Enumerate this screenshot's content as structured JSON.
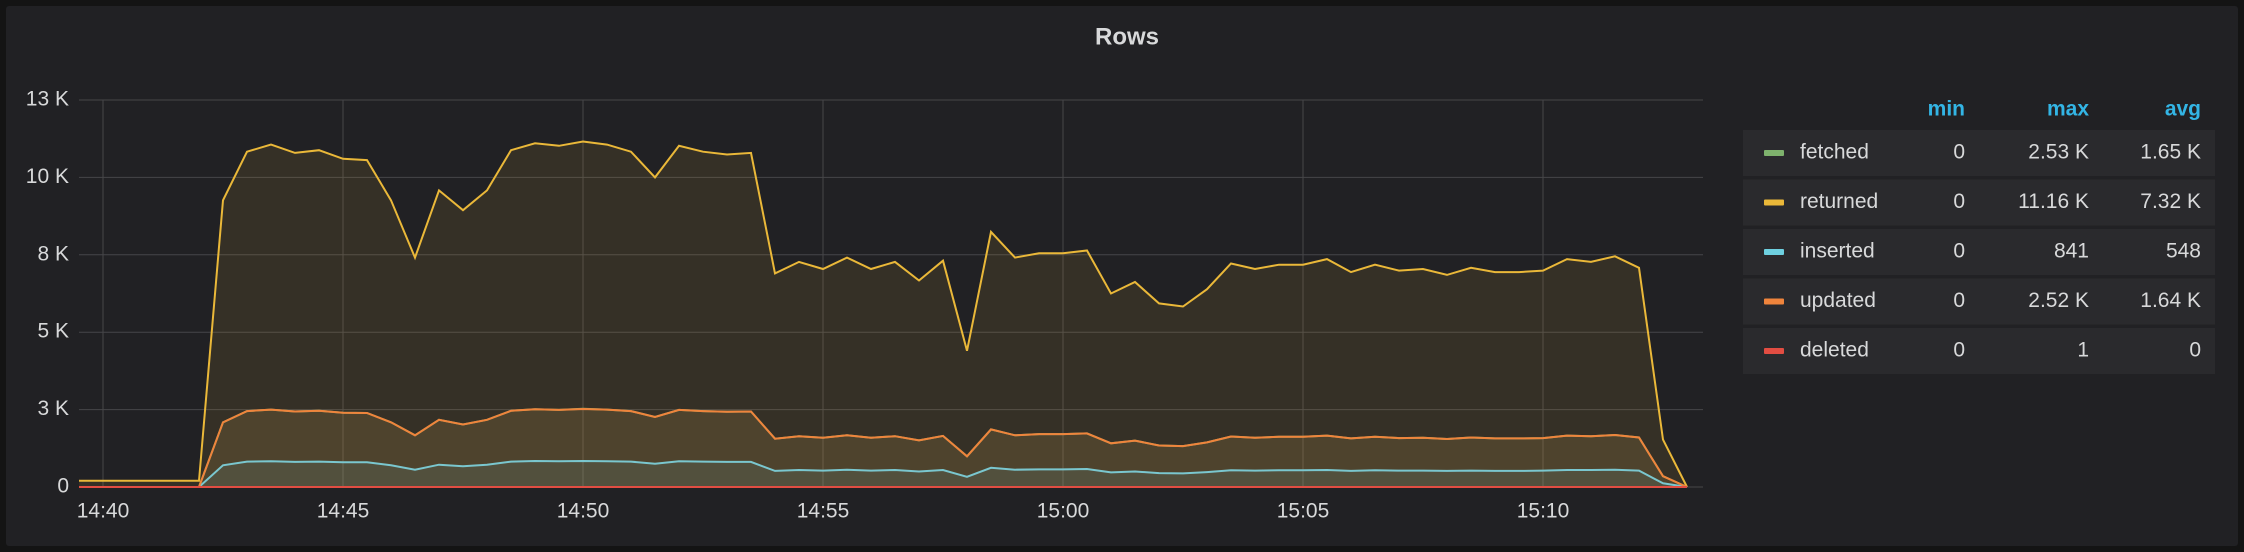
{
  "chart_data": {
    "type": "line",
    "title": "Rows",
    "x": [
      "14:39:30",
      "14:40:00",
      "14:40:30",
      "14:41:00",
      "14:41:30",
      "14:42:00",
      "14:42:30",
      "14:43:00",
      "14:43:30",
      "14:44:00",
      "14:44:30",
      "14:45:00",
      "14:45:30",
      "14:46:00",
      "14:46:30",
      "14:47:00",
      "14:47:30",
      "14:48:00",
      "14:48:30",
      "14:49:00",
      "14:49:30",
      "14:50:00",
      "14:50:30",
      "14:51:00",
      "14:51:30",
      "14:52:00",
      "14:52:30",
      "14:53:00",
      "14:53:30",
      "14:54:00",
      "14:54:30",
      "14:55:00",
      "14:55:30",
      "14:56:00",
      "14:56:30",
      "14:57:00",
      "14:57:30",
      "14:58:00",
      "14:58:30",
      "14:59:00",
      "14:59:30",
      "15:00:00",
      "15:00:30",
      "15:01:00",
      "15:01:30",
      "15:02:00",
      "15:02:30",
      "15:03:00",
      "15:03:30",
      "15:04:00",
      "15:04:30",
      "15:05:00",
      "15:05:30",
      "15:06:00",
      "15:06:30",
      "15:07:00",
      "15:07:30",
      "15:08:00",
      "15:08:30",
      "15:09:00",
      "15:09:30",
      "15:10:00",
      "15:10:30",
      "15:11:00",
      "15:11:30",
      "15:12:00",
      "15:12:30",
      "15:13:00"
    ],
    "xlim": [
      "14:39:30",
      "15:13:20"
    ],
    "xticks": [
      "14:40",
      "14:45",
      "14:50",
      "14:55",
      "15:00",
      "15:05",
      "15:10"
    ],
    "ylim": [
      0,
      12500
    ],
    "yticks": [
      0,
      {
        "value": 2500,
        "label": "3 K"
      },
      {
        "value": 5000,
        "label": "5 K"
      },
      {
        "value": 7500,
        "label": "8 K"
      },
      {
        "value": 10000,
        "label": "10 K"
      },
      {
        "value": 12500,
        "label": "13 K"
      }
    ],
    "grid": true,
    "legend": {
      "position": "right",
      "columns": [
        "min",
        "max",
        "avg"
      ]
    },
    "series": [
      {
        "name": "fetched",
        "color": "#7eb26d",
        "stats": [
          "0",
          "2.53 K",
          "1.65 K"
        ],
        "values": [
          0,
          0,
          0,
          0,
          0,
          0,
          2090,
          2450,
          2500,
          2440,
          2460,
          2400,
          2390,
          2090,
          1670,
          2170,
          2020,
          2170,
          2460,
          2510,
          2490,
          2530,
          2500,
          2450,
          2260,
          2490,
          2450,
          2430,
          2440,
          1560,
          1640,
          1590,
          1670,
          1590,
          1640,
          1510,
          1650,
          990,
          1860,
          1670,
          1710,
          1710,
          1730,
          1410,
          1500,
          1340,
          1320,
          1440,
          1630,
          1590,
          1620,
          1620,
          1660,
          1570,
          1620,
          1580,
          1590,
          1550,
          1600,
          1570,
          1570,
          1580,
          1660,
          1640,
          1680,
          1600,
          350,
          0
        ]
      },
      {
        "name": "returned",
        "color": "#eab839",
        "stats": [
          "0",
          "11.16 K",
          "7.32 K"
        ],
        "values": [
          200,
          200,
          200,
          200,
          200,
          200,
          9260,
          10830,
          11060,
          10790,
          10880,
          10600,
          10560,
          9260,
          7410,
          9580,
          8940,
          9580,
          10880,
          11100,
          11020,
          11160,
          11060,
          10830,
          10000,
          11020,
          10830,
          10740,
          10790,
          6900,
          7270,
          7040,
          7410,
          7040,
          7270,
          6670,
          7310,
          4400,
          8240,
          7410,
          7550,
          7550,
          7640,
          6250,
          6620,
          5930,
          5830,
          6390,
          7220,
          7040,
          7180,
          7180,
          7360,
          6940,
          7180,
          6990,
          7040,
          6850,
          7080,
          6940,
          6940,
          6990,
          7360,
          7270,
          7450,
          7080,
          1530,
          0
        ]
      },
      {
        "name": "inserted",
        "color": "#6ed0e0",
        "stats": [
          "0",
          "841",
          "548"
        ],
        "values": [
          0,
          0,
          0,
          0,
          0,
          0,
          700,
          820,
          830,
          810,
          820,
          800,
          800,
          700,
          560,
          720,
          670,
          720,
          820,
          840,
          830,
          841,
          830,
          820,
          750,
          830,
          820,
          810,
          810,
          520,
          550,
          530,
          560,
          530,
          550,
          500,
          550,
          330,
          620,
          560,
          570,
          570,
          580,
          470,
          500,
          450,
          440,
          480,
          540,
          530,
          540,
          540,
          550,
          520,
          540,
          530,
          530,
          520,
          530,
          520,
          520,
          530,
          550,
          550,
          560,
          530,
          120,
          0
        ]
      },
      {
        "name": "updated",
        "color": "#ef843c",
        "stats": [
          "0",
          "2.52 K",
          "1.64 K"
        ],
        "values": [
          0,
          0,
          0,
          0,
          0,
          0,
          2090,
          2450,
          2500,
          2440,
          2460,
          2400,
          2390,
          2090,
          1670,
          2170,
          2020,
          2170,
          2460,
          2510,
          2490,
          2520,
          2500,
          2450,
          2260,
          2490,
          2450,
          2430,
          2440,
          1560,
          1640,
          1590,
          1670,
          1590,
          1640,
          1510,
          1650,
          990,
          1860,
          1670,
          1710,
          1710,
          1730,
          1410,
          1500,
          1340,
          1320,
          1440,
          1630,
          1590,
          1620,
          1620,
          1660,
          1570,
          1620,
          1580,
          1590,
          1550,
          1600,
          1570,
          1570,
          1580,
          1660,
          1640,
          1680,
          1600,
          350,
          0
        ]
      },
      {
        "name": "deleted",
        "color": "#e24d42",
        "stats": [
          "0",
          "1",
          "0"
        ],
        "values": [
          0,
          0,
          0,
          0,
          0,
          0,
          0,
          0,
          0,
          0,
          0,
          0,
          0,
          0,
          0,
          0,
          0,
          0,
          0,
          0,
          0,
          1,
          0,
          0,
          0,
          0,
          0,
          0,
          0,
          0,
          0,
          0,
          0,
          0,
          0,
          0,
          0,
          0,
          0,
          0,
          0,
          0,
          0,
          0,
          0,
          0,
          0,
          0,
          0,
          0,
          0,
          0,
          0,
          0,
          0,
          0,
          0,
          0,
          0,
          0,
          0,
          0,
          0,
          0,
          0,
          0,
          0,
          0
        ]
      }
    ]
  }
}
